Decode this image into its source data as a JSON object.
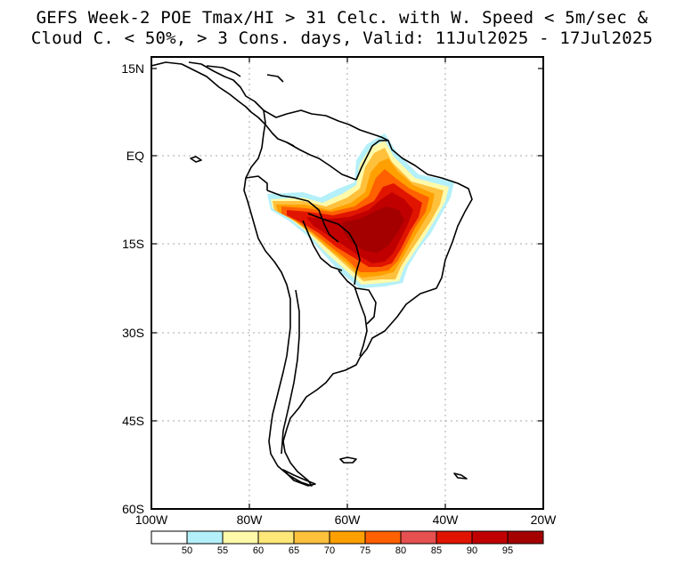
{
  "title": {
    "line1": "GEFS Week-2 POE Tmax/HI > 31 Celc. with W. Speed < 5m/sec &",
    "line2": "Cloud C. < 50%, > 3 Cons. days, Valid: 11Jul2025 - 17Jul2025"
  },
  "axes": {
    "lat_labels": [
      "15N",
      "EQ",
      "15S",
      "30S",
      "45S",
      "60S"
    ],
    "lon_labels": [
      "100W",
      "80W",
      "60W",
      "40W",
      "20W"
    ]
  },
  "colorbar": {
    "labels": [
      "50",
      "55",
      "60",
      "65",
      "70",
      "75",
      "80",
      "85",
      "90",
      "95"
    ],
    "colors": [
      "#ffffff",
      "#b4f0fa",
      "#fffaaa",
      "#ffe878",
      "#ffc03c",
      "#ffa000",
      "#ff6000",
      "#e65050",
      "#e11400",
      "#c00000",
      "#a50000"
    ]
  },
  "style": {
    "map_background": "#ffffff",
    "coastline_color": "#000000",
    "grid_color": "#aaaaaa"
  }
}
